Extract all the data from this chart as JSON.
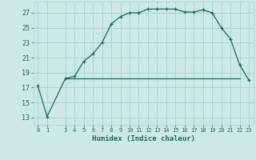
{
  "title": "",
  "xlabel": "Humidex (Indice chaleur)",
  "ylabel": "",
  "bg_color": "#cce8e8",
  "line_color": "#1a6b5a",
  "x_data": [
    0,
    1,
    3,
    4,
    5,
    6,
    7,
    8,
    9,
    10,
    11,
    12,
    13,
    14,
    15,
    16,
    17,
    18,
    19,
    20,
    21,
    22,
    23
  ],
  "y_data": [
    17.2,
    13.1,
    18.2,
    18.5,
    20.5,
    21.5,
    23.0,
    25.5,
    26.5,
    27.0,
    27.0,
    27.5,
    27.5,
    27.5,
    27.5,
    27.1,
    27.1,
    27.4,
    27.0,
    25.0,
    23.5,
    20.0,
    18.0
  ],
  "flat_line_x_start": 3,
  "flat_line_x_end": 22,
  "flat_line_y": 18.2,
  "xlim": [
    -0.5,
    23.5
  ],
  "ylim": [
    12.0,
    28.5
  ],
  "yticks": [
    13,
    15,
    17,
    19,
    21,
    23,
    25,
    27
  ],
  "xticks": [
    0,
    1,
    3,
    4,
    5,
    6,
    7,
    8,
    9,
    10,
    11,
    12,
    13,
    14,
    15,
    16,
    17,
    18,
    19,
    20,
    21,
    22,
    23
  ],
  "grid_color": "#aacfcf",
  "marker": "+"
}
